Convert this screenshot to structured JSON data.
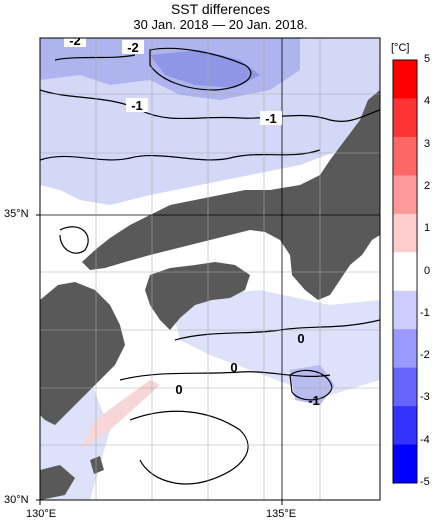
{
  "header": {
    "title": "SST differences",
    "period": "30 Jan. 2018 — 20 Jan. 2018."
  },
  "colorbar": {
    "unit": "[°C]",
    "ticks": [
      "5",
      "4",
      "3",
      "2",
      "1",
      "0",
      "-1",
      "-2",
      "-3",
      "-4",
      "-5"
    ],
    "colors": [
      "#ff0000",
      "#ff3333",
      "#ff6666",
      "#ff9999",
      "#ffcccc",
      "#ffffff",
      "#ccccff",
      "#9999ff",
      "#6666ff",
      "#3333ff",
      "#0000ff"
    ]
  },
  "axes": {
    "lat_labels": [
      "35°N",
      "30°N"
    ],
    "lon_labels": [
      "130°E",
      "135°E"
    ]
  },
  "contour_labels": [
    "-2",
    "-2",
    "-1",
    "-1",
    "0",
    "0",
    "0",
    "-1"
  ],
  "colors": {
    "land": "#595959",
    "grid": "#aaaaaa",
    "cool_fill": "#d3d8f7",
    "cold_fill": "#aeb4ee"
  }
}
